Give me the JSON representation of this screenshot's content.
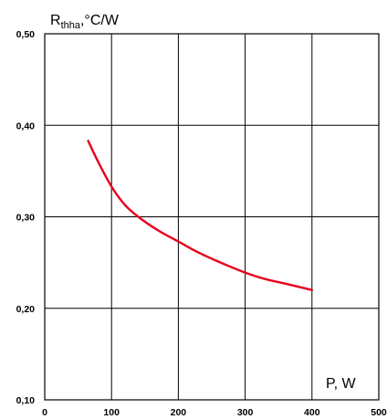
{
  "chart_data": {
    "type": "line",
    "ylabel_main": "R",
    "ylabel_sub": "thha",
    "ylabel_unit": ",°C/W",
    "xlabel": "P, W",
    "xlim": [
      0,
      500
    ],
    "ylim": [
      0.1,
      0.5
    ],
    "xticks": [
      "0",
      "100",
      "200",
      "300",
      "400",
      "500"
    ],
    "yticks": [
      "0,10",
      "0,20",
      "0,30",
      "0,40",
      "0,50"
    ],
    "grid": true,
    "series": [
      {
        "color": "#e8001c",
        "x": [
          65,
          80,
          100,
          120,
          140,
          170,
          200,
          230,
          260,
          300,
          330,
          360,
          400
        ],
        "y": [
          0.383,
          0.36,
          0.333,
          0.313,
          0.3,
          0.285,
          0.273,
          0.261,
          0.251,
          0.239,
          0.232,
          0.227,
          0.22
        ]
      }
    ]
  }
}
